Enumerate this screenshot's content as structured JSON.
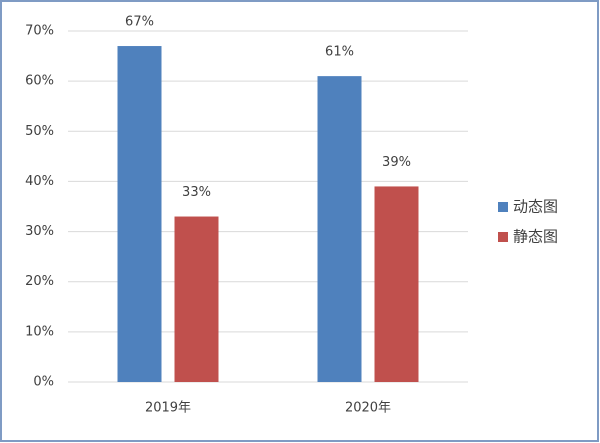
{
  "chart_data": {
    "type": "bar",
    "categories": [
      "2019年",
      "2020年"
    ],
    "series": [
      {
        "name": "动态图",
        "color": "#4f81bd",
        "values": [
          67,
          61
        ],
        "value_labels": [
          "67%",
          "61%"
        ]
      },
      {
        "name": "静态图",
        "color": "#c0504d",
        "values": [
          33,
          39
        ],
        "value_labels": [
          "33%",
          "39%"
        ]
      }
    ],
    "ylim": [
      0,
      70
    ],
    "yticks": [
      {
        "value": 0,
        "label": "0%"
      },
      {
        "value": 10,
        "label": "10%"
      },
      {
        "value": 20,
        "label": "20%"
      },
      {
        "value": 30,
        "label": "30%"
      },
      {
        "value": 40,
        "label": "40%"
      },
      {
        "value": 50,
        "label": "50%"
      },
      {
        "value": 60,
        "label": "60%"
      },
      {
        "value": 70,
        "label": "70%"
      }
    ],
    "grid": true,
    "legend": "right"
  }
}
